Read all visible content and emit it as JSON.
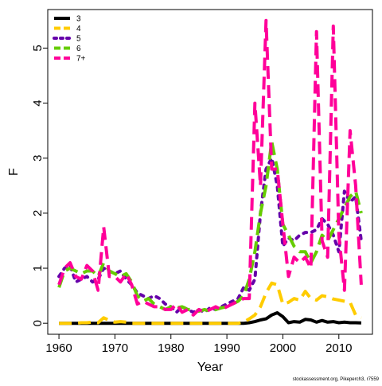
{
  "chart_data": {
    "type": "line",
    "xlabel": "Year",
    "ylabel": "F",
    "xlim": [
      1958,
      2016
    ],
    "ylim": [
      -0.2,
      5.7
    ],
    "xticks": [
      1960,
      1970,
      1980,
      1990,
      2000,
      2010
    ],
    "yticks": [
      0,
      1,
      2,
      3,
      4,
      5
    ],
    "grid": false,
    "legend_position": "top-left",
    "footer": "stockassessment.org, Pikeperch3, r7559",
    "series": [
      {
        "name": "3",
        "color": "#000000",
        "dash": "solid",
        "width": 4,
        "x": [
          1960,
          1961,
          1962,
          1963,
          1964,
          1965,
          1966,
          1967,
          1968,
          1969,
          1970,
          1971,
          1972,
          1973,
          1974,
          1975,
          1976,
          1977,
          1978,
          1979,
          1980,
          1981,
          1982,
          1983,
          1984,
          1985,
          1986,
          1987,
          1988,
          1989,
          1990,
          1991,
          1992,
          1993,
          1994,
          1995,
          1996,
          1997,
          1998,
          1999,
          2000,
          2001,
          2002,
          2003,
          2004,
          2005,
          2006,
          2007,
          2008,
          2009,
          2010,
          2011,
          2012,
          2013,
          2014
        ],
        "y": [
          0,
          0,
          0,
          0,
          0,
          0,
          0,
          0,
          0,
          0,
          0,
          0,
          0,
          0,
          0,
          0,
          0,
          0,
          0,
          0,
          0,
          0,
          0,
          0,
          0,
          0,
          0,
          0,
          0,
          0,
          0,
          0,
          0,
          0,
          0.01,
          0.03,
          0.06,
          0.08,
          0.15,
          0.19,
          0.12,
          0.01,
          0.03,
          0.02,
          0.07,
          0.06,
          0.02,
          0.05,
          0.02,
          0.03,
          0.01,
          0.02,
          0.01,
          0.01,
          0.005
        ]
      },
      {
        "name": "4",
        "color": "#FFCC00",
        "dash": "dashed",
        "width": 4,
        "x": [
          1960,
          1961,
          1962,
          1963,
          1964,
          1965,
          1966,
          1967,
          1968,
          1969,
          1970,
          1971,
          1972,
          1973,
          1974,
          1975,
          1976,
          1977,
          1978,
          1979,
          1980,
          1981,
          1982,
          1983,
          1984,
          1985,
          1986,
          1987,
          1988,
          1989,
          1990,
          1991,
          1992,
          1993,
          1994,
          1995,
          1996,
          1997,
          1998,
          1999,
          2000,
          2001,
          2002,
          2003,
          2004,
          2005,
          2006,
          2007,
          2008,
          2009,
          2010,
          2011,
          2012,
          2013,
          2014
        ],
        "y": [
          0,
          0,
          0,
          0,
          0.01,
          0.01,
          0.02,
          0.01,
          0.1,
          0.05,
          0.02,
          0.03,
          0.02,
          0,
          0,
          0,
          0,
          0,
          0,
          0,
          0,
          0,
          0,
          0,
          0,
          0,
          0,
          0,
          0,
          0,
          0,
          0,
          0,
          0.02,
          0.08,
          0.15,
          0.3,
          0.55,
          0.73,
          0.7,
          0.35,
          0.38,
          0.45,
          0.42,
          0.58,
          0.45,
          0.42,
          0.5,
          0.48,
          0.44,
          0.42,
          0.4,
          0.38,
          0.15,
          0.1
        ]
      },
      {
        "name": "5",
        "color": "#6600AA",
        "dash": "dotted",
        "width": 4,
        "x": [
          1960,
          1961,
          1962,
          1963,
          1964,
          1965,
          1966,
          1967,
          1968,
          1969,
          1970,
          1971,
          1972,
          1973,
          1974,
          1975,
          1976,
          1977,
          1978,
          1979,
          1980,
          1981,
          1982,
          1983,
          1984,
          1985,
          1986,
          1987,
          1988,
          1989,
          1990,
          1991,
          1992,
          1993,
          1994,
          1995,
          1996,
          1997,
          1998,
          1999,
          2000,
          2001,
          2002,
          2003,
          2004,
          2005,
          2006,
          2007,
          2008,
          2009,
          2010,
          2011,
          2012,
          2013,
          2014
        ],
        "y": [
          0.85,
          1.0,
          1.05,
          0.75,
          0.8,
          0.85,
          0.75,
          0.8,
          1.0,
          0.95,
          0.9,
          0.95,
          0.8,
          0.7,
          0.55,
          0.5,
          0.45,
          0.5,
          0.45,
          0.35,
          0.3,
          0.2,
          0.3,
          0.25,
          0.2,
          0.25,
          0.2,
          0.28,
          0.25,
          0.3,
          0.35,
          0.4,
          0.45,
          0.65,
          0.6,
          0.8,
          2.0,
          2.8,
          3.0,
          2.5,
          1.4,
          1.55,
          1.5,
          1.6,
          1.65,
          1.65,
          1.7,
          1.9,
          1.8,
          1.6,
          1.3,
          2.4,
          2.2,
          2.3,
          1.5
        ]
      },
      {
        "name": "6",
        "color": "#66CC00",
        "dash": "dashed",
        "width": 4,
        "x": [
          1960,
          1961,
          1962,
          1963,
          1964,
          1965,
          1966,
          1967,
          1968,
          1969,
          1970,
          1971,
          1972,
          1973,
          1974,
          1975,
          1976,
          1977,
          1978,
          1979,
          1980,
          1981,
          1982,
          1983,
          1984,
          1985,
          1986,
          1987,
          1988,
          1989,
          1990,
          1991,
          1992,
          1993,
          1994,
          1995,
          1996,
          1997,
          1998,
          1999,
          2000,
          2001,
          2002,
          2003,
          2004,
          2005,
          2006,
          2007,
          2008,
          2009,
          2010,
          2011,
          2012,
          2013,
          2014
        ],
        "y": [
          0.65,
          0.95,
          1.0,
          0.95,
          0.9,
          0.95,
          0.95,
          0.85,
          1.1,
          0.95,
          0.9,
          0.85,
          0.9,
          0.75,
          0.5,
          0.4,
          0.45,
          0.35,
          0.3,
          0.25,
          0.3,
          0.28,
          0.3,
          0.25,
          0.25,
          0.22,
          0.25,
          0.22,
          0.25,
          0.28,
          0.3,
          0.35,
          0.4,
          0.5,
          0.8,
          1.3,
          2.0,
          2.5,
          3.3,
          2.8,
          1.8,
          1.6,
          1.4,
          1.3,
          1.3,
          1.1,
          1.3,
          1.6,
          1.5,
          1.7,
          1.9,
          2.1,
          2.3,
          2.4,
          2.0
        ]
      },
      {
        "name": "7+",
        "color": "#FF0099",
        "dash": "dashed",
        "width": 4,
        "x": [
          1960,
          1961,
          1962,
          1963,
          1964,
          1965,
          1966,
          1967,
          1968,
          1969,
          1970,
          1971,
          1972,
          1973,
          1974,
          1975,
          1976,
          1977,
          1978,
          1979,
          1980,
          1981,
          1982,
          1983,
          1984,
          1985,
          1986,
          1987,
          1988,
          1989,
          1990,
          1991,
          1992,
          1993,
          1994,
          1995,
          1996,
          1997,
          1998,
          1999,
          2000,
          2001,
          2002,
          2003,
          2004,
          2005,
          2006,
          2007,
          2008,
          2009,
          2010,
          2011,
          2012,
          2013,
          2014
        ],
        "y": [
          0.7,
          1.0,
          1.1,
          0.85,
          0.8,
          1.05,
          0.95,
          0.6,
          1.75,
          0.85,
          0.85,
          0.75,
          0.9,
          0.7,
          0.35,
          0.4,
          0.35,
          0.3,
          0.3,
          0.25,
          0.25,
          0.35,
          0.2,
          0.25,
          0.15,
          0.25,
          0.2,
          0.25,
          0.3,
          0.25,
          0.3,
          0.35,
          0.4,
          0.45,
          0.45,
          4.0,
          2.5,
          5.5,
          2.8,
          2.8,
          1.8,
          0.85,
          1.2,
          1.1,
          1.2,
          1.0,
          5.3,
          1.5,
          1.2,
          5.4,
          1.6,
          0.6,
          3.5,
          2.5,
          0.7
        ]
      }
    ]
  }
}
